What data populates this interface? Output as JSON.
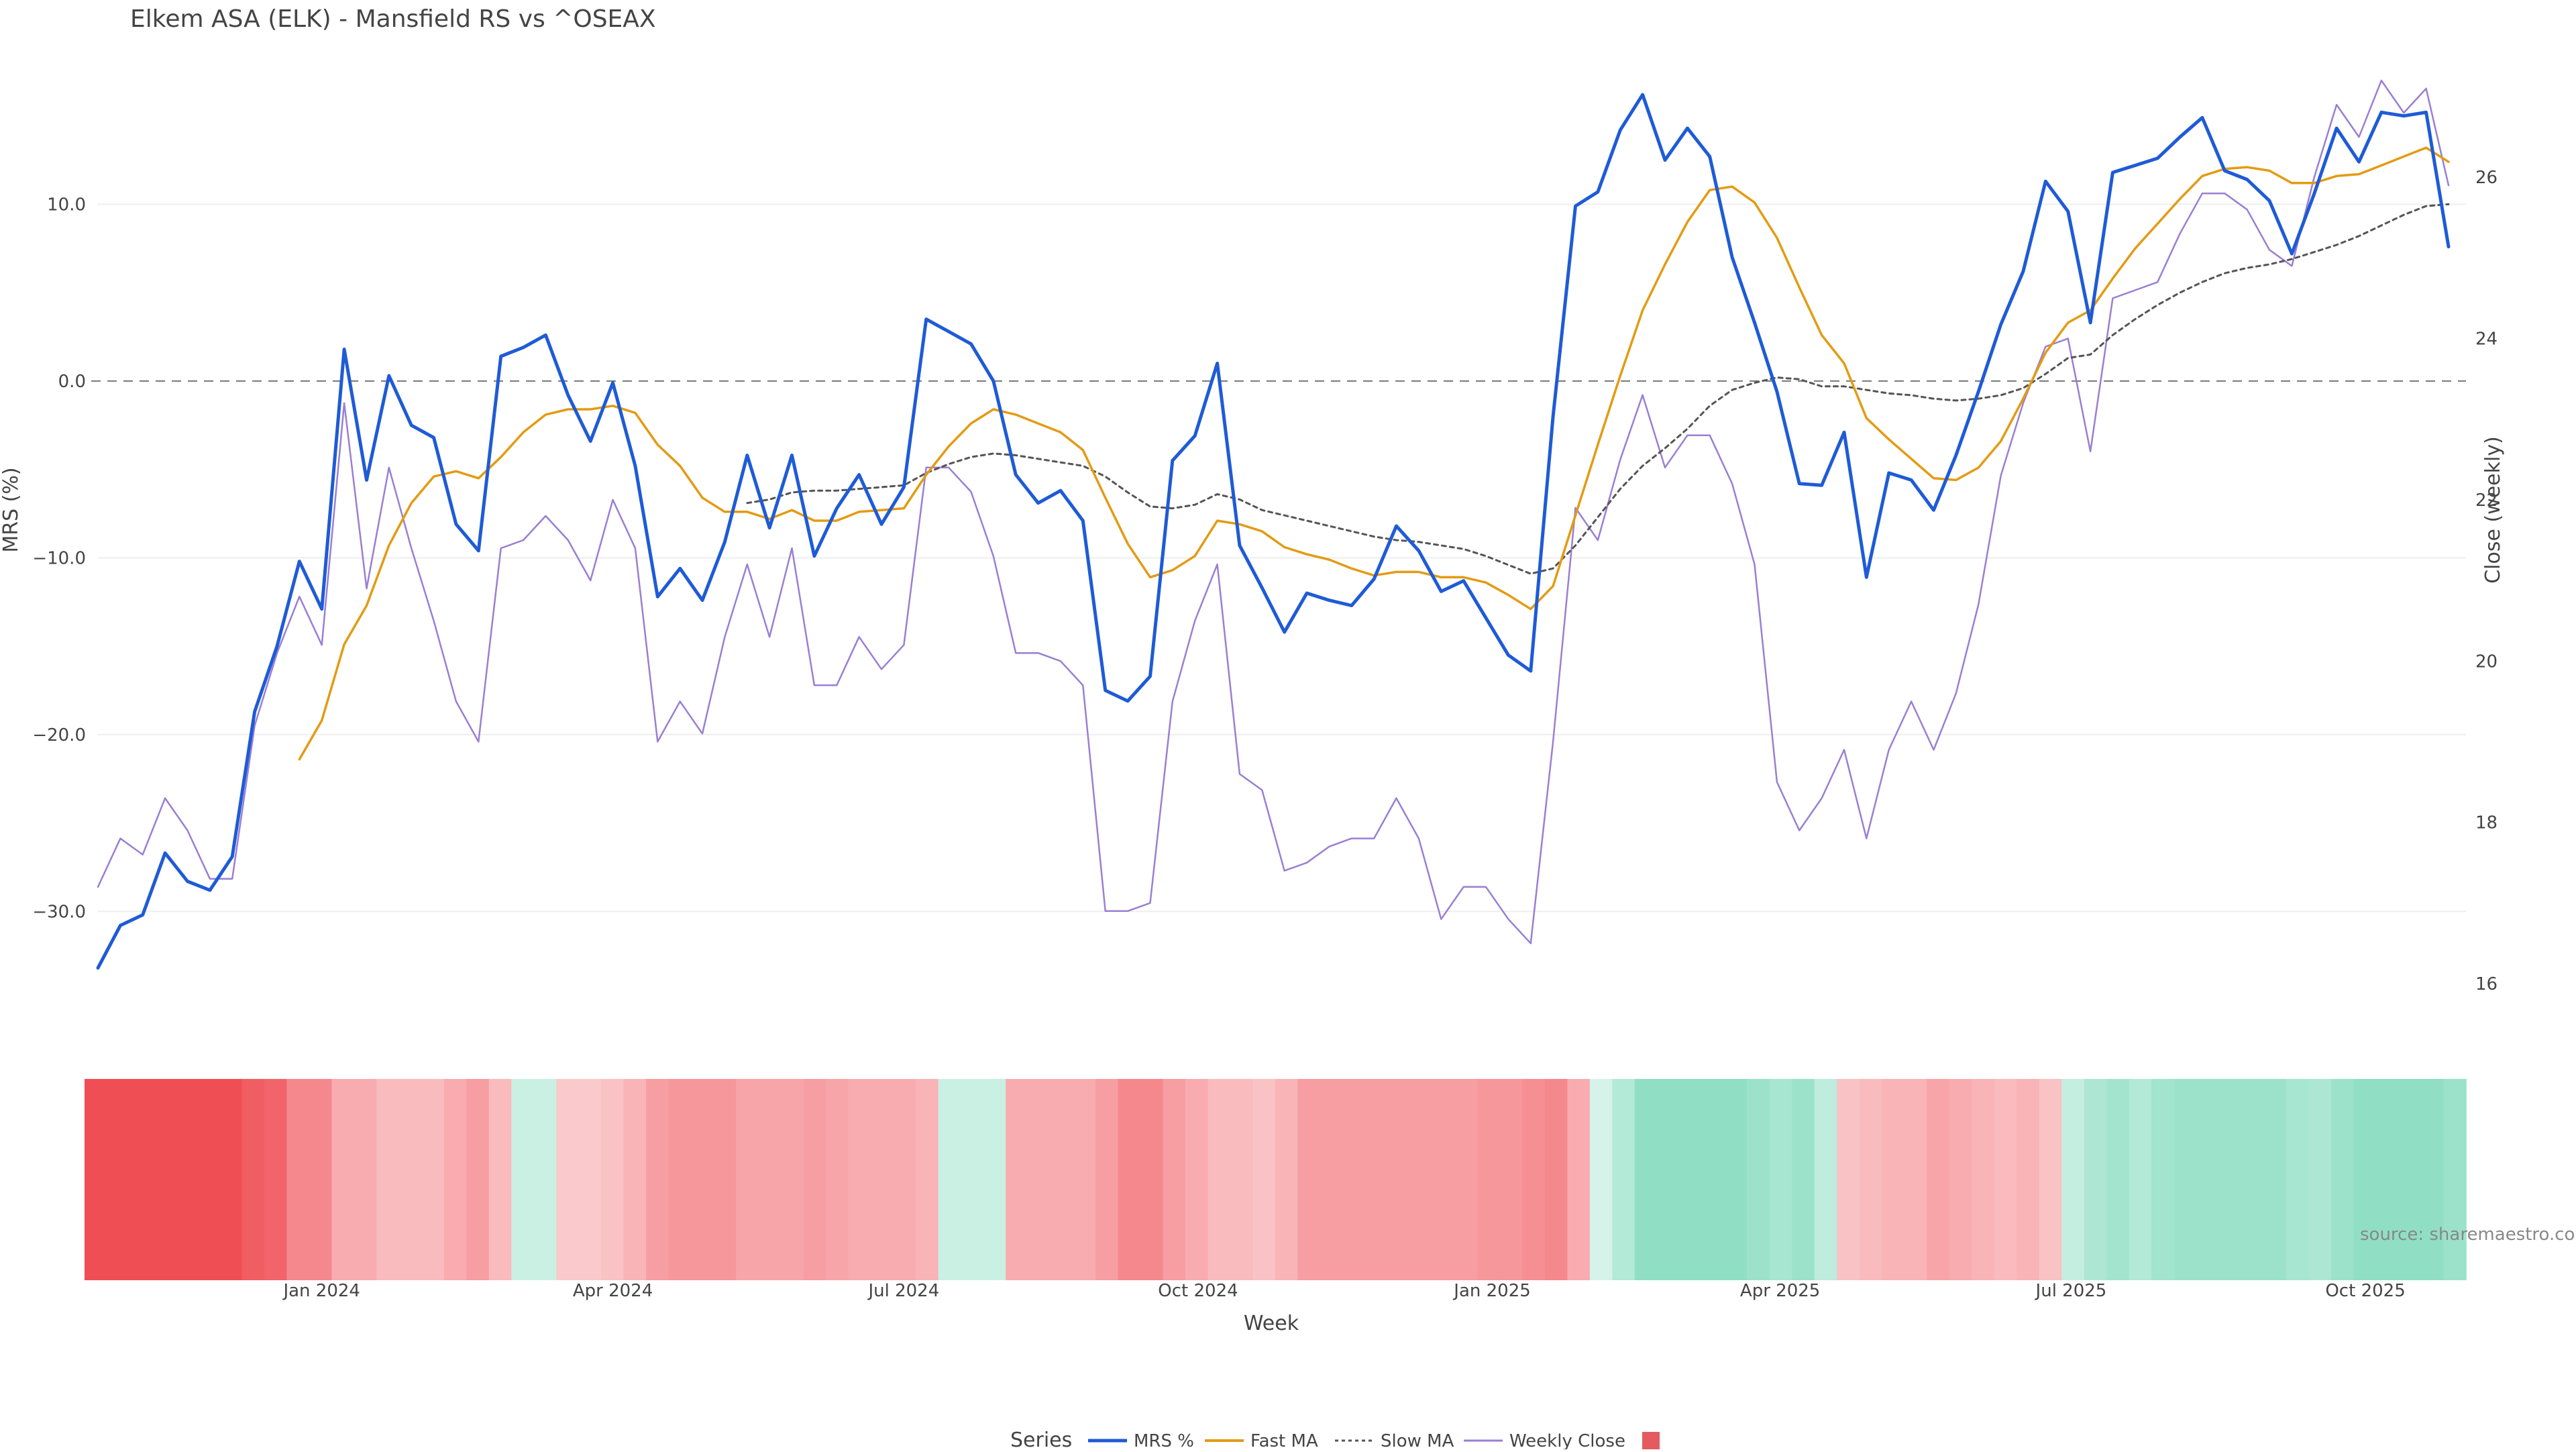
{
  "chart_data": {
    "type": "line",
    "title": "Elkem ASA (ELK) - Mansfield RS vs ^OSEAX",
    "xlabel": "Week",
    "ylabel_left": "MRS (%)",
    "ylabel_right": "Close (weekly)",
    "ylim_left": [
      -35,
      17
    ],
    "ylim_right": [
      15.8,
      27.2
    ],
    "yticks_left": [
      10.0,
      0.0,
      -10.0,
      -20.0,
      -30.0
    ],
    "yticks_left_labels": [
      "10.0",
      "0.0",
      "−10.0",
      "−20.0",
      "−30.0"
    ],
    "yticks_right": [
      26,
      24,
      22,
      20,
      18,
      16
    ],
    "yticks_right_labels": [
      "26",
      "24",
      "22",
      "20",
      "18",
      "16"
    ],
    "x_start": "2023-10-23",
    "week_step_days": 7,
    "xticks": [
      {
        "date": "2024-01-01",
        "label": "Jan 2024"
      },
      {
        "date": "2024-04-01",
        "label": "Apr 2024"
      },
      {
        "date": "2024-07-01",
        "label": "Jul 2024"
      },
      {
        "date": "2024-10-01",
        "label": "Oct 2024"
      },
      {
        "date": "2025-01-01",
        "label": "Jan 2025"
      },
      {
        "date": "2025-04-01",
        "label": "Apr 2025"
      },
      {
        "date": "2025-07-01",
        "label": "Jul 2025"
      },
      {
        "date": "2025-10-01",
        "label": "Oct 2025"
      }
    ],
    "grid": true,
    "zero_line": {
      "value": 0,
      "style": "dashed"
    },
    "legend": {
      "title": "Series",
      "position": "bottom"
    },
    "source_text": "source: sharemaestro.com",
    "colors": {
      "mrs": "#1f5bd6",
      "fast_ma": "#e39b14",
      "slow_ma": "#555555",
      "weekly_close": "#9a7fd3",
      "legend_square": "#e35a5f",
      "heat_negative": "#ef4e55",
      "heat_positive": "#74d7b6"
    },
    "series": [
      {
        "name": "MRS %",
        "axis": "left",
        "values": [
          -33.2,
          -30.8,
          -30.2,
          -26.7,
          -28.3,
          -28.8,
          -26.9,
          -18.7,
          -15.0,
          -10.2,
          -12.9,
          1.8,
          -5.6,
          0.3,
          -2.5,
          -3.2,
          -8.1,
          -9.6,
          1.4,
          1.9,
          2.6,
          -0.8,
          -3.4,
          -0.1,
          -4.8,
          -12.2,
          -10.6,
          -12.4,
          -9.1,
          -4.2,
          -8.3,
          -4.2,
          -9.9,
          -7.2,
          -5.3,
          -8.1,
          -6.0,
          3.5,
          2.8,
          2.1,
          0.0,
          -5.3,
          -6.9,
          -6.2,
          -7.9,
          -17.5,
          -18.1,
          -16.7,
          -4.5,
          -3.1,
          1.0,
          -9.3,
          -11.7,
          -14.2,
          -12.0,
          -12.4,
          -12.7,
          -11.2,
          -8.2,
          -9.6,
          -11.9,
          -11.3,
          -13.4,
          -15.5,
          -16.4,
          -2.0,
          9.9,
          10.7,
          14.2,
          16.2,
          12.5,
          14.3,
          12.7,
          7.0,
          3.3,
          -0.6,
          -5.8,
          -5.9,
          -2.9,
          -11.1,
          -5.2,
          -5.6,
          -7.3,
          -4.2,
          -0.6,
          3.2,
          6.2,
          11.3,
          9.6,
          3.3,
          11.8,
          12.2,
          12.6,
          13.8,
          14.9,
          11.9,
          11.4,
          10.2,
          7.2,
          10.6,
          14.3,
          12.4,
          15.2,
          15.0,
          15.2,
          7.6
        ]
      },
      {
        "name": "Fast MA",
        "axis": "left",
        "values": [
          null,
          null,
          null,
          null,
          null,
          null,
          null,
          null,
          null,
          -21.4,
          -19.2,
          -14.9,
          -12.7,
          -9.3,
          -6.9,
          -5.4,
          -5.1,
          -5.5,
          -4.3,
          -2.9,
          -1.9,
          -1.6,
          -1.6,
          -1.4,
          -1.8,
          -3.6,
          -4.8,
          -6.6,
          -7.4,
          -7.4,
          -7.8,
          -7.3,
          -7.9,
          -7.9,
          -7.4,
          -7.3,
          -7.2,
          -5.3,
          -3.7,
          -2.4,
          -1.6,
          -1.9,
          -2.4,
          -2.9,
          -3.9,
          -6.6,
          -9.2,
          -11.1,
          -10.7,
          -9.9,
          -7.9,
          -8.1,
          -8.5,
          -9.4,
          -9.8,
          -10.1,
          -10.6,
          -11.0,
          -10.8,
          -10.8,
          -11.1,
          -11.1,
          -11.4,
          -12.1,
          -12.9,
          -11.6,
          -7.6,
          -3.6,
          0.3,
          4.0,
          6.6,
          9.0,
          10.8,
          11.0,
          10.1,
          8.1,
          5.3,
          2.6,
          1.0,
          -2.1,
          -3.3,
          -4.4,
          -5.5,
          -5.6,
          -4.9,
          -3.4,
          -1.0,
          1.6,
          3.3,
          4.0,
          5.8,
          7.5,
          8.9,
          10.3,
          11.6,
          12.0,
          12.1,
          11.9,
          11.2,
          11.2,
          11.6,
          11.7,
          12.2,
          12.7,
          13.2,
          12.4
        ]
      },
      {
        "name": "Slow MA",
        "axis": "left",
        "values": [
          null,
          null,
          null,
          null,
          null,
          null,
          null,
          null,
          null,
          null,
          null,
          null,
          null,
          null,
          null,
          null,
          null,
          null,
          null,
          null,
          null,
          null,
          null,
          null,
          null,
          null,
          null,
          null,
          null,
          -6.9,
          -6.7,
          -6.3,
          -6.2,
          -6.2,
          -6.1,
          -6.0,
          -5.9,
          -5.2,
          -4.7,
          -4.3,
          -4.1,
          -4.2,
          -4.4,
          -4.6,
          -4.8,
          -5.4,
          -6.3,
          -7.1,
          -7.2,
          -7.0,
          -6.4,
          -6.7,
          -7.3,
          -7.6,
          -7.9,
          -8.2,
          -8.5,
          -8.8,
          -9.0,
          -9.1,
          -9.3,
          -9.5,
          -9.9,
          -10.4,
          -10.9,
          -10.6,
          -9.3,
          -7.7,
          -6.1,
          -4.8,
          -3.8,
          -2.7,
          -1.4,
          -0.5,
          -0.1,
          0.2,
          0.1,
          -0.3,
          -0.3,
          -0.5,
          -0.7,
          -0.8,
          -1.0,
          -1.1,
          -1.0,
          -0.8,
          -0.4,
          0.4,
          1.3,
          1.5,
          2.6,
          3.5,
          4.3,
          5.0,
          5.6,
          6.1,
          6.4,
          6.6,
          6.9,
          7.3,
          7.7,
          8.2,
          8.8,
          9.4,
          9.9,
          10.0
        ]
      },
      {
        "name": "Weekly Close",
        "axis": "right",
        "values": [
          17.2,
          17.8,
          17.6,
          18.3,
          17.9,
          17.3,
          17.3,
          19.2,
          20.1,
          20.8,
          20.2,
          23.2,
          20.9,
          22.4,
          21.4,
          20.5,
          19.5,
          19.0,
          21.4,
          21.5,
          21.8,
          21.5,
          21.0,
          22.0,
          21.4,
          19.0,
          19.5,
          19.1,
          20.3,
          21.2,
          20.3,
          21.4,
          19.7,
          19.7,
          20.3,
          19.9,
          20.2,
          22.4,
          22.4,
          22.1,
          21.3,
          20.1,
          20.1,
          20.0,
          19.7,
          16.9,
          16.9,
          17.0,
          19.5,
          20.5,
          21.2,
          18.6,
          18.4,
          17.4,
          17.5,
          17.7,
          17.8,
          17.8,
          18.3,
          17.8,
          16.8,
          17.2,
          17.2,
          16.8,
          16.5,
          19.0,
          21.9,
          21.5,
          22.5,
          23.3,
          22.4,
          22.8,
          22.8,
          22.2,
          21.2,
          18.5,
          17.9,
          18.3,
          18.9,
          17.8,
          18.9,
          19.5,
          18.9,
          19.6,
          20.7,
          22.3,
          23.2,
          23.9,
          24.0,
          22.6,
          24.5,
          24.6,
          24.7,
          25.3,
          25.8,
          25.8,
          25.6,
          25.1,
          24.9,
          26.0,
          26.9,
          26.5,
          27.2,
          26.8,
          27.1,
          25.9
        ]
      },
      {
        "name": "",
        "axis": "none",
        "values": []
      }
    ],
    "heatmap_band": {
      "type": "heatmap",
      "description_values_are": "regime strength per week, negative=red, positive=green",
      "values": [
        -1.0,
        -1.0,
        -1.0,
        -1.0,
        -1.0,
        -1.0,
        -1.0,
        -0.9,
        -0.85,
        -0.6,
        -0.6,
        -0.35,
        -0.35,
        -0.25,
        -0.25,
        -0.25,
        -0.35,
        -0.45,
        -0.25,
        0.25,
        0.25,
        -0.15,
        -0.15,
        -0.2,
        -0.3,
        -0.45,
        -0.5,
        -0.5,
        -0.5,
        -0.4,
        -0.4,
        -0.4,
        -0.45,
        -0.4,
        -0.35,
        -0.35,
        -0.35,
        -0.3,
        0.25,
        0.25,
        0.25,
        -0.35,
        -0.35,
        -0.35,
        -0.35,
        -0.45,
        -0.6,
        -0.6,
        -0.45,
        -0.35,
        -0.25,
        -0.25,
        -0.2,
        -0.3,
        -0.45,
        -0.45,
        -0.45,
        -0.45,
        -0.45,
        -0.45,
        -0.45,
        -0.45,
        -0.5,
        -0.5,
        -0.55,
        -0.6,
        -0.35,
        0.15,
        0.45,
        0.75,
        0.75,
        0.75,
        0.75,
        0.75,
        0.65,
        0.55,
        0.65,
        0.35,
        -0.2,
        -0.25,
        -0.3,
        -0.3,
        -0.4,
        -0.35,
        -0.3,
        -0.25,
        -0.3,
        -0.2,
        0.3,
        0.5,
        0.6,
        0.45,
        0.6,
        0.65,
        0.65,
        0.65,
        0.65,
        0.65,
        0.55,
        0.5,
        0.65,
        0.75,
        0.75,
        0.75,
        0.75,
        0.65
      ]
    }
  }
}
